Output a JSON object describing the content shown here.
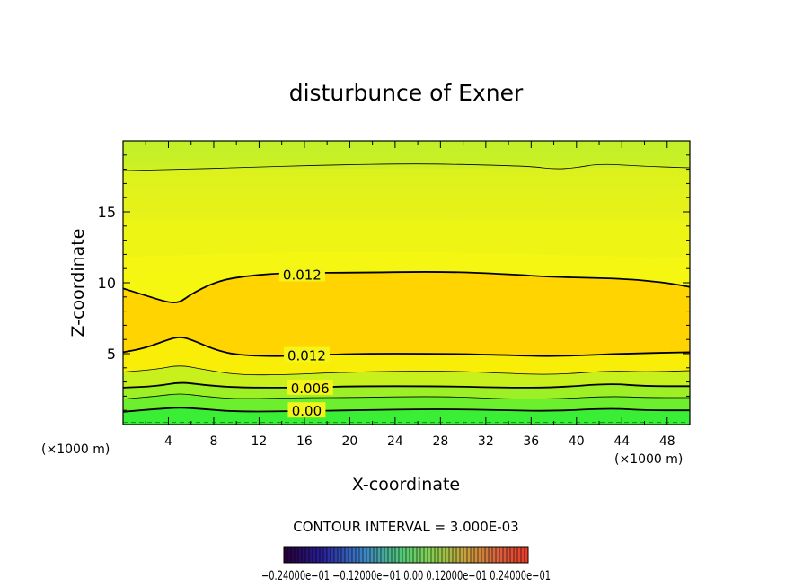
{
  "chart_data": {
    "type": "contour",
    "title": "disturbunce of Exner",
    "xlabel": "X-coordinate",
    "ylabel": "Z-coordinate",
    "x_unit_left": "(×1000 m)",
    "x_unit_right": "(×1000 m)",
    "xlim": [
      0,
      50
    ],
    "ylim": [
      0,
      20
    ],
    "x_ticks": [
      4,
      8,
      12,
      16,
      20,
      24,
      28,
      32,
      36,
      40,
      44,
      48
    ],
    "y_ticks": [
      5,
      10,
      15
    ],
    "contour_interval_label": "CONTOUR INTERVAL = 3.000E-03",
    "colorbar_label": "−0.24000e−01 −0.12000e−01 0.00 0.12000e−01 0.24000e−01",
    "contour_labels": [
      {
        "text": "0.012",
        "x": 15.8,
        "z": 10.6
      },
      {
        "text": "0.012",
        "x": 16.2,
        "z": 4.9
      },
      {
        "text": "0.006",
        "x": 16.5,
        "z": 2.6
      },
      {
        "text": "0.00",
        "x": 16.2,
        "z": 1.0
      }
    ],
    "contours": [
      {
        "level": 0.012,
        "weight": "major",
        "points": [
          [
            0,
            9.6
          ],
          [
            2,
            9.1
          ],
          [
            4,
            8.6
          ],
          [
            5,
            8.6
          ],
          [
            6,
            9.2
          ],
          [
            8,
            10.0
          ],
          [
            10,
            10.4
          ],
          [
            14,
            10.7
          ],
          [
            20,
            10.7
          ],
          [
            28,
            10.8
          ],
          [
            34,
            10.6
          ],
          [
            38,
            10.4
          ],
          [
            44,
            10.3
          ],
          [
            48,
            10.0
          ],
          [
            50,
            9.7
          ]
        ]
      },
      {
        "level": 0.012,
        "weight": "major",
        "points": [
          [
            0,
            5.1
          ],
          [
            2,
            5.4
          ],
          [
            4,
            6.0
          ],
          [
            5,
            6.2
          ],
          [
            6,
            6.0
          ],
          [
            8,
            5.3
          ],
          [
            10,
            4.9
          ],
          [
            14,
            4.8
          ],
          [
            20,
            5.0
          ],
          [
            28,
            5.0
          ],
          [
            34,
            4.9
          ],
          [
            38,
            4.8
          ],
          [
            44,
            5.0
          ],
          [
            50,
            5.1
          ]
        ]
      },
      {
        "level": 0.009,
        "weight": "minor",
        "points": [
          [
            0,
            3.7
          ],
          [
            3,
            3.9
          ],
          [
            5,
            4.2
          ],
          [
            7,
            3.9
          ],
          [
            10,
            3.5
          ],
          [
            14,
            3.5
          ],
          [
            20,
            3.7
          ],
          [
            28,
            3.8
          ],
          [
            34,
            3.6
          ],
          [
            38,
            3.5
          ],
          [
            43,
            3.8
          ],
          [
            46,
            3.7
          ],
          [
            50,
            3.8
          ]
        ]
      },
      {
        "level": 0.006,
        "weight": "major",
        "points": [
          [
            0,
            2.6
          ],
          [
            3,
            2.7
          ],
          [
            5,
            3.0
          ],
          [
            7,
            2.8
          ],
          [
            10,
            2.6
          ],
          [
            16,
            2.6
          ],
          [
            20,
            2.7
          ],
          [
            28,
            2.7
          ],
          [
            34,
            2.6
          ],
          [
            38,
            2.6
          ],
          [
            43,
            2.9
          ],
          [
            46,
            2.7
          ],
          [
            50,
            2.7
          ]
        ]
      },
      {
        "level": 0.003,
        "weight": "minor",
        "points": [
          [
            0,
            1.8
          ],
          [
            3,
            2.0
          ],
          [
            5,
            2.2
          ],
          [
            7,
            2.0
          ],
          [
            10,
            1.8
          ],
          [
            16,
            1.9
          ],
          [
            20,
            1.9
          ],
          [
            28,
            2.0
          ],
          [
            34,
            1.8
          ],
          [
            38,
            1.8
          ],
          [
            43,
            2.0
          ],
          [
            46,
            1.9
          ],
          [
            50,
            1.9
          ]
        ]
      },
      {
        "level": 0.0,
        "weight": "major",
        "points": [
          [
            0,
            0.9
          ],
          [
            3,
            1.1
          ],
          [
            5,
            1.2
          ],
          [
            7,
            1.1
          ],
          [
            10,
            0.9
          ],
          [
            16,
            0.95
          ],
          [
            20,
            1.0
          ],
          [
            28,
            1.1
          ],
          [
            34,
            1.0
          ],
          [
            38,
            0.95
          ],
          [
            43,
            1.15
          ],
          [
            46,
            1.0
          ],
          [
            50,
            1.0
          ]
        ]
      },
      {
        "level": 0.018,
        "weight": "minor",
        "points": [
          [
            0,
            17.9
          ],
          [
            5,
            18.0
          ],
          [
            10,
            18.1
          ],
          [
            18,
            18.3
          ],
          [
            26,
            18.4
          ],
          [
            32,
            18.3
          ],
          [
            36,
            18.2
          ],
          [
            38,
            18.0
          ],
          [
            40,
            18.1
          ],
          [
            42,
            18.4
          ],
          [
            46,
            18.2
          ],
          [
            50,
            18.1
          ]
        ]
      }
    ],
    "fill_bands": [
      {
        "color": "#e8f21a",
        "top": [
          [
            0,
            18.0
          ],
          [
            50,
            18.1
          ]
        ]
      },
      {
        "color": "#f0f514",
        "top": [
          [
            0,
            14.5
          ],
          [
            50,
            14.5
          ]
        ]
      },
      {
        "color": "#faf810",
        "top": [
          [
            0,
            11.8
          ],
          [
            10,
            12.1
          ],
          [
            28,
            12.2
          ],
          [
            50,
            11.7
          ]
        ]
      },
      {
        "color": "#ffe800",
        "top": [
          [
            0,
            9.6
          ],
          [
            2,
            9.1
          ],
          [
            4,
            8.6
          ],
          [
            5,
            8.6
          ],
          [
            6,
            9.2
          ],
          [
            8,
            10.0
          ],
          [
            10,
            10.4
          ],
          [
            14,
            10.7
          ],
          [
            20,
            10.7
          ],
          [
            28,
            10.8
          ],
          [
            34,
            10.6
          ],
          [
            38,
            10.4
          ],
          [
            44,
            10.3
          ],
          [
            48,
            10.0
          ],
          [
            50,
            9.7
          ]
        ]
      }
    ]
  }
}
